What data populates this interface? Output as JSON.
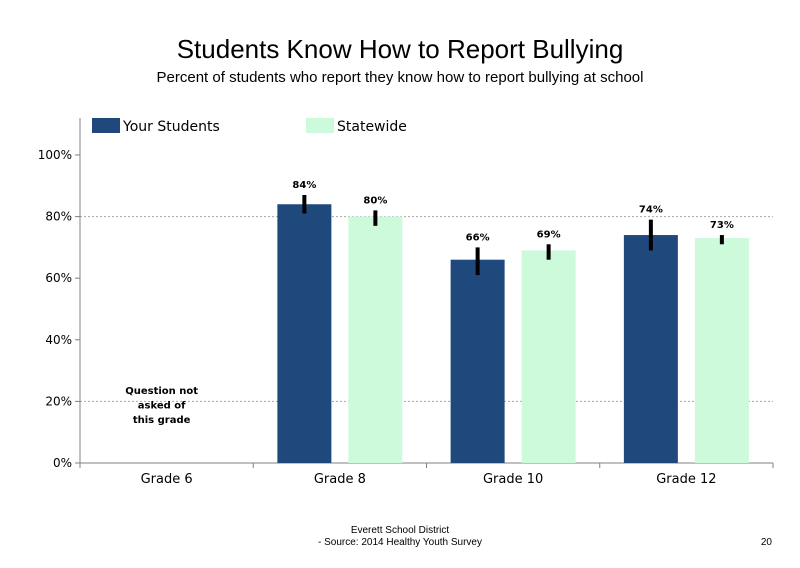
{
  "page": {
    "title": "Students Know How to Report Bullying",
    "subtitle": "Percent of students who report they know how to report bullying at school",
    "footer_line1": "Everett School District",
    "footer_line2": "- Source: 2014 Healthy Youth Survey",
    "page_number": "20",
    "note_lines": [
      "Question not",
      "asked of",
      "this grade"
    ]
  },
  "colors": {
    "your_students": "#1f497d",
    "statewide": "#ccfadb",
    "error_bar": "#000000",
    "gridline": "#a6a6a6",
    "axis": "#808080"
  },
  "chart_data": {
    "type": "bar",
    "title": "Students Know How to Report Bullying",
    "subtitle": "Percent of students who report they know how to report bullying at school",
    "categories": [
      "Grade 6",
      "Grade 8",
      "Grade 10",
      "Grade 12"
    ],
    "ylim": [
      0,
      1
    ],
    "yticks": [
      0,
      0.2,
      0.4,
      0.6,
      0.8,
      1.0
    ],
    "ytick_labels": [
      "0%",
      "20%",
      "40%",
      "60%",
      "80%",
      "100%"
    ],
    "grid": "horizontal dotted at 20% and 80%",
    "legend": "top",
    "series": [
      {
        "name": "Your Students",
        "values": [
          null,
          0.84,
          0.66,
          0.74
        ],
        "labels": [
          null,
          "84%",
          "66%",
          "74%"
        ],
        "error_low": [
          null,
          0.81,
          0.61,
          0.69
        ],
        "error_high": [
          null,
          0.87,
          0.7,
          0.79
        ]
      },
      {
        "name": "Statewide",
        "values": [
          null,
          0.8,
          0.69,
          0.73
        ],
        "labels": [
          null,
          "80%",
          "69%",
          "73%"
        ],
        "error_low": [
          null,
          0.77,
          0.66,
          0.71
        ],
        "error_high": [
          null,
          0.82,
          0.71,
          0.74
        ]
      }
    ]
  }
}
